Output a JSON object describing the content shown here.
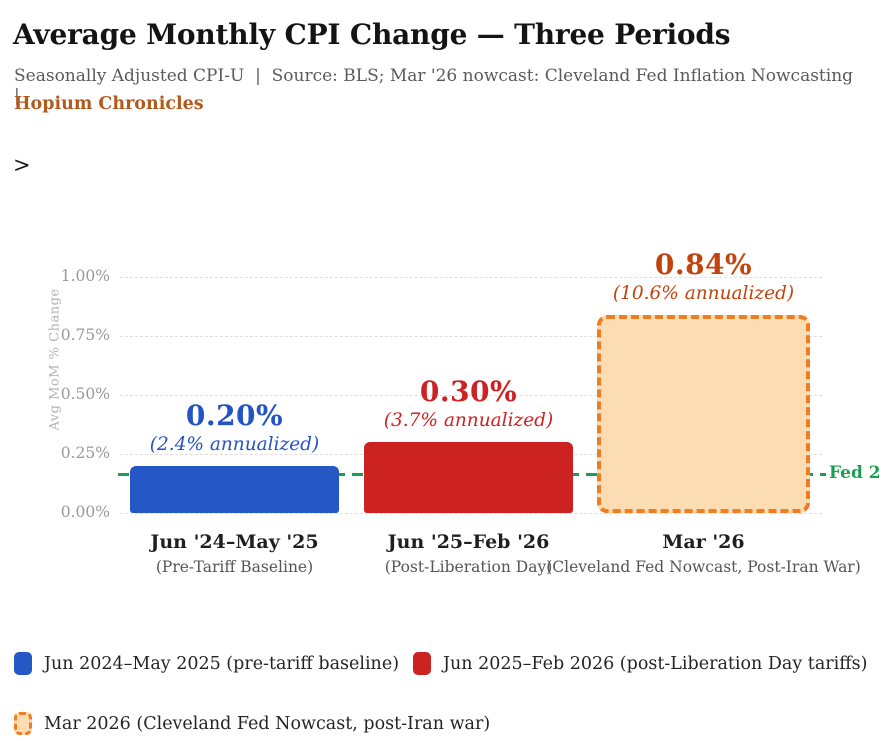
{
  "header": {
    "title": "Average Monthly CPI Change — Three Periods",
    "subtitle": "Seasonally Adjusted CPI-U  |  Source: BLS; Mar '26 nowcast: Cleveland Fed Inflation Nowcasting  |",
    "brand": "Hopium Chronicles"
  },
  "stray_caret": ">",
  "chart_data": {
    "type": "bar",
    "title": "Average Monthly CPI Change — Three Periods",
    "xlabel": "",
    "ylabel": "Avg MoM % Change",
    "ylim": [
      0,
      1.0
    ],
    "ytick_values": [
      0,
      0.25,
      0.5,
      0.75,
      1.0
    ],
    "ytick_labels": [
      "0.00%",
      "0.25%",
      "0.50%",
      "0.75%",
      "1.00%"
    ],
    "grid": "horizontal-dashed",
    "bars": [
      {
        "category": "Jun '24–May '25",
        "category_note": "(Pre-Tariff Baseline)",
        "value": 0.2,
        "value_label": "0.20%",
        "annualized": "(2.4% annualized)",
        "color": "#2557c5",
        "label_color": "#2353c4",
        "style": "solid"
      },
      {
        "category": "Jun '25–Feb '26",
        "category_note": "(Post-Liberation Day)",
        "value": 0.3,
        "value_label": "0.30%",
        "annualized": "(3.7% annualized)",
        "color": "#cc2222",
        "label_color": "#cc2222",
        "style": "solid"
      },
      {
        "category": "Mar '26",
        "category_note": "(Cleveland Fed Nowcast, Post-Iran War)",
        "value": 0.84,
        "value_label": "0.84%",
        "annualized": "(10.6% annualized)",
        "color": "#fcdcb2",
        "border_color": "#f07d1f",
        "label_color": "#c1440e",
        "style": "dashed"
      }
    ],
    "reference_line": {
      "value": 0.165,
      "label": "Fed 2",
      "color": "#1d9e52",
      "style": "dashed"
    }
  },
  "legend": {
    "items": [
      {
        "label": "Jun 2024–May 2025 (pre-tariff baseline)",
        "fill": "#2557c5",
        "style": "solid"
      },
      {
        "label": "Jun 2025–Feb 2026 (post-Liberation Day tariffs)",
        "fill": "#cc2222",
        "style": "solid"
      },
      {
        "label": "Mar 2026 (Cleveland Fed Nowcast, post-Iran war)",
        "fill": "#fcdcb2",
        "border": "#f07d1f",
        "style": "dashed"
      }
    ]
  }
}
